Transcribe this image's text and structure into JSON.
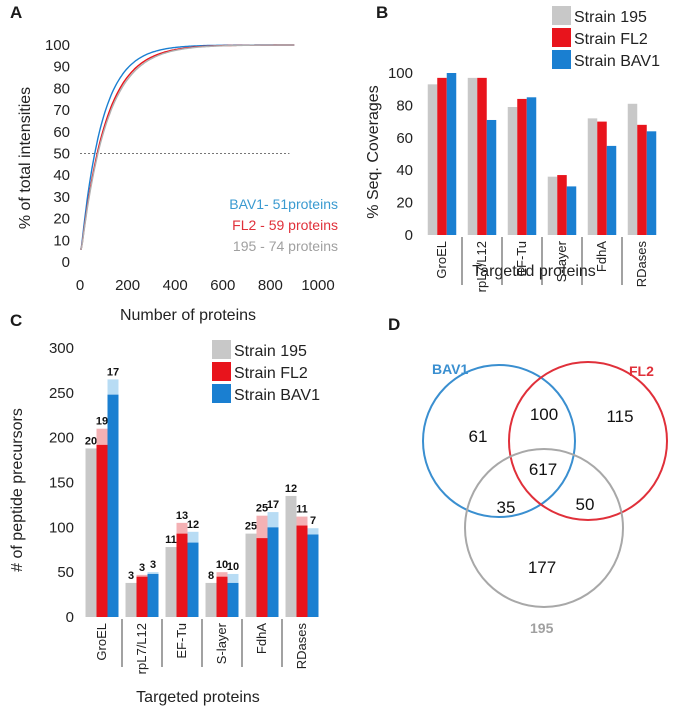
{
  "colors": {
    "s195": "#c8c8c8",
    "fl2": "#e8141c",
    "bav1": "#1a7fd1",
    "fl2_light": "#f4b1b4",
    "bav1_light": "#b8dcf4",
    "s195_light": "#e2e2e2",
    "venn_bav1": "#3a8fd0",
    "venn_fl2": "#e0303a",
    "venn_195": "#a8a8a8"
  },
  "chart_data": [
    {
      "panel": "A",
      "type": "line",
      "ylabel": "% of total intensities",
      "xlabel": "Number of proteins",
      "xlim": [
        0,
        1000
      ],
      "ylim": [
        0,
        100
      ],
      "xticks": [
        "0",
        "200",
        "400",
        "600",
        "800",
        "1000"
      ],
      "yticks": [
        "0",
        "10",
        "20",
        "30",
        "40",
        "50",
        "60",
        "70",
        "80",
        "90",
        "100"
      ],
      "threshold": 50,
      "series": [
        {
          "name": "BAV1",
          "total": 900,
          "k": 0.0112
        },
        {
          "name": "FL2",
          "total": 900,
          "k": 0.0096
        },
        {
          "name": "195",
          "total": 900,
          "k": 0.0092
        }
      ],
      "annotations": [
        "BAV1- 51proteins",
        "FL2 - 59 proteins",
        "195 - 74 proteins"
      ]
    },
    {
      "panel": "B",
      "type": "bar",
      "ylabel": "% Seq. Coverages",
      "xlabel": "Targeted proteins",
      "ylim": [
        0,
        100
      ],
      "yticks": [
        "0",
        "20",
        "40",
        "60",
        "80",
        "100"
      ],
      "categories": [
        "GroEL",
        "rpL7/L12",
        "EF-Tu",
        "S-layer",
        "FdhA",
        "RDases"
      ],
      "legend": [
        "Strain 195",
        "Strain FL2",
        "Strain BAV1"
      ],
      "series": [
        {
          "name": "Strain 195",
          "values": [
            93,
            97,
            79,
            36,
            72,
            81
          ]
        },
        {
          "name": "Strain FL2",
          "values": [
            97,
            97,
            84,
            37,
            70,
            68
          ]
        },
        {
          "name": "Strain BAV1",
          "values": [
            100,
            71,
            85,
            30,
            55,
            64
          ]
        }
      ]
    },
    {
      "panel": "C",
      "type": "bar",
      "ylabel": "# of peptide precursors",
      "xlabel": "Targeted proteins",
      "ylim": [
        0,
        300
      ],
      "yticks": [
        "0",
        "50",
        "100",
        "150",
        "200",
        "250",
        "300"
      ],
      "categories": [
        "GroEL",
        "rpL7/L12",
        "EF-Tu",
        "S-layer",
        "FdhA",
        "RDases"
      ],
      "legend": [
        "Strain 195",
        "Strain FL2",
        "Strain BAV1"
      ],
      "series": [
        {
          "name": "Strain 195",
          "values": [
            188,
            38,
            78,
            38,
            93,
            135
          ],
          "tops": [
            188,
            38,
            78,
            38,
            93,
            135
          ],
          "labels": [
            "20",
            "3",
            "11",
            "8",
            "25",
            "12"
          ]
        },
        {
          "name": "Strain FL2",
          "values": [
            192,
            45,
            93,
            45,
            88,
            102
          ],
          "tops": [
            210,
            47,
            105,
            50,
            113,
            112
          ],
          "labels": [
            "19",
            "3",
            "13",
            "10",
            "25",
            "11"
          ]
        },
        {
          "name": "Strain BAV1",
          "values": [
            248,
            48,
            83,
            38,
            100,
            92
          ],
          "tops": [
            265,
            50,
            95,
            48,
            117,
            99
          ],
          "labels": [
            "17",
            "3",
            "12",
            "10",
            "17",
            "7"
          ]
        }
      ]
    },
    {
      "panel": "D",
      "type": "venn",
      "sets": [
        "BAV1",
        "FL2",
        "195"
      ],
      "regions": {
        "bav1_only": "61",
        "fl2_only": "115",
        "s195_only": "177",
        "bav1_fl2": "100",
        "bav1_195": "35",
        "fl2_195": "50",
        "all": "617"
      }
    }
  ]
}
